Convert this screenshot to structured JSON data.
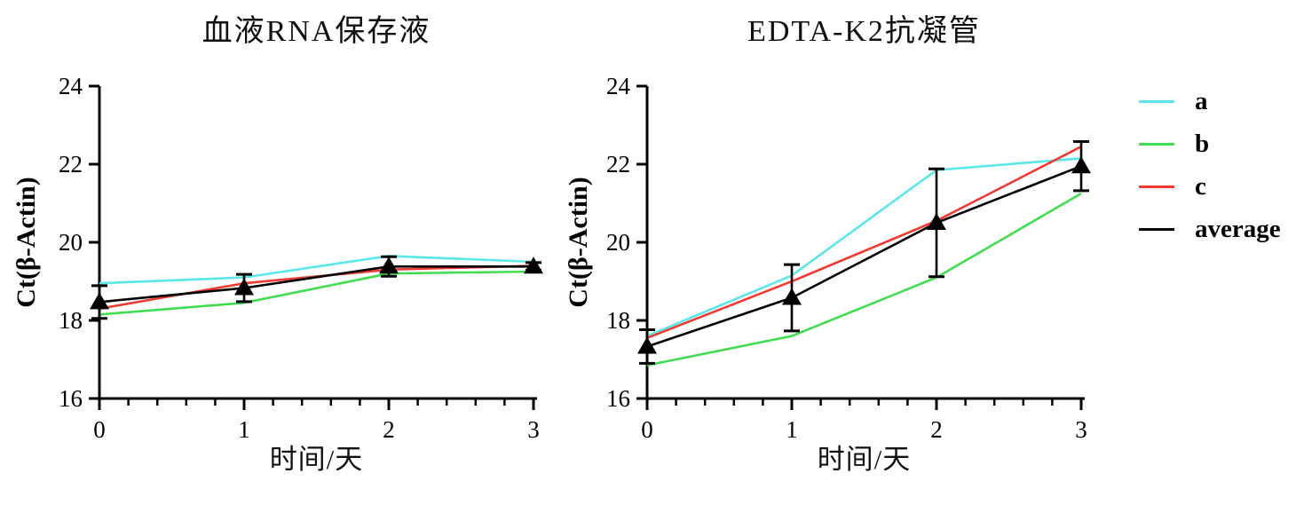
{
  "page": {
    "background": "#ffffff"
  },
  "legend": {
    "items": [
      {
        "label": "a",
        "color": "#5BE6EA"
      },
      {
        "label": "b",
        "color": "#41DD51"
      },
      {
        "label": "c",
        "color": "#EE3A31"
      },
      {
        "label": "average",
        "color": "#000000"
      }
    ]
  },
  "chart_data": [
    {
      "type": "line",
      "title": "血液RNA保存液",
      "xlabel": "时间/天",
      "ylabel": "Ct(β-Actin)",
      "xlim": [
        0,
        3
      ],
      "ylim": [
        16,
        24
      ],
      "xticks": [
        0,
        1,
        2,
        3
      ],
      "yticks": [
        16,
        18,
        20,
        22,
        24
      ],
      "x_minor_step": 0.2,
      "grid": false,
      "x": [
        0,
        1,
        2,
        3
      ],
      "series": [
        {
          "name": "a",
          "color": "#5BE6EA",
          "values": [
            18.95,
            19.1,
            19.65,
            19.5
          ]
        },
        {
          "name": "b",
          "color": "#41DD51",
          "values": [
            18.15,
            18.45,
            19.2,
            19.25
          ]
        },
        {
          "name": "c",
          "color": "#EE3A31",
          "values": [
            18.3,
            18.95,
            19.3,
            19.4
          ]
        },
        {
          "name": "average",
          "color": "#000000",
          "marker": "triangle",
          "values": [
            18.47,
            18.83,
            19.38,
            19.38
          ],
          "error_bars": [
            0.42,
            0.35,
            0.25,
            0.1
          ]
        }
      ]
    },
    {
      "type": "line",
      "title": "EDTA-K2抗凝管",
      "xlabel": "时间/天",
      "ylabel": "Ct(β-Actin)",
      "xlim": [
        0,
        3
      ],
      "ylim": [
        16,
        24
      ],
      "xticks": [
        0,
        1,
        2,
        3
      ],
      "yticks": [
        16,
        18,
        20,
        22,
        24
      ],
      "x_minor_step": 0.2,
      "grid": false,
      "x": [
        0,
        1,
        2,
        3
      ],
      "series": [
        {
          "name": "a",
          "color": "#5BE6EA",
          "values": [
            17.6,
            19.15,
            21.85,
            22.15
          ]
        },
        {
          "name": "b",
          "color": "#41DD51",
          "values": [
            16.85,
            17.6,
            19.1,
            21.25
          ]
        },
        {
          "name": "c",
          "color": "#EE3A31",
          "values": [
            17.55,
            19.0,
            20.55,
            22.45
          ]
        },
        {
          "name": "average",
          "color": "#000000",
          "marker": "triangle",
          "values": [
            17.33,
            18.58,
            20.5,
            21.95
          ],
          "error_bars": [
            0.43,
            0.85,
            1.38,
            0.63
          ]
        }
      ]
    }
  ]
}
